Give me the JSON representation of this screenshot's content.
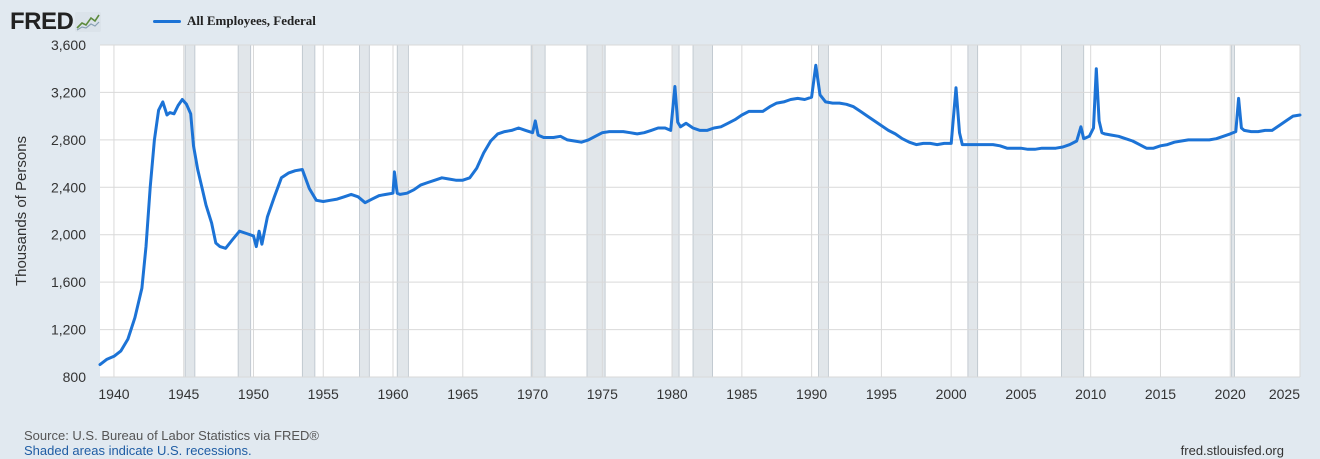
{
  "header": {
    "logo_text": "FRED",
    "logo_icon": "chart-trend-icon",
    "legend_label": "All Employees, Federal"
  },
  "colors": {
    "line": "#1c73d6",
    "plot_bg": "#ffffff",
    "page_bg": "#e1e9f0",
    "recession": "#e1e6ea",
    "grid": "#d9d9d9"
  },
  "footer": {
    "source": "U.S. Bureau of Labor Statistics via FRED®",
    "source_prefix": "Source: ",
    "recession_note": "Shaded areas indicate U.S. recessions.",
    "site": "fred.stlouisfed.org"
  },
  "chart_data": {
    "type": "line",
    "ylabel": "Thousands of Persons",
    "xlabel": "",
    "xlim": [
      1939.0,
      2025.0
    ],
    "ylim": [
      800,
      3600
    ],
    "y_ticks": [
      800,
      1200,
      1600,
      2000,
      2400,
      2800,
      3200,
      3600
    ],
    "y_tick_labels": [
      "800",
      "1,200",
      "1,600",
      "2,000",
      "2,400",
      "2,800",
      "3,200",
      "3,600"
    ],
    "x_ticks": [
      1940,
      1945,
      1950,
      1955,
      1960,
      1965,
      1970,
      1975,
      1980,
      1985,
      1990,
      1995,
      2000,
      2005,
      2010,
      2015,
      2020,
      2025
    ],
    "grid": true,
    "recessions": [
      [
        1945.1,
        1945.8
      ],
      [
        1948.9,
        1949.8
      ],
      [
        1953.5,
        1954.4
      ],
      [
        1957.6,
        1958.3
      ],
      [
        1960.3,
        1961.1
      ],
      [
        1969.9,
        1970.9
      ],
      [
        1973.9,
        1975.2
      ],
      [
        1980.0,
        1980.5
      ],
      [
        1981.5,
        1982.9
      ],
      [
        1990.5,
        1991.2
      ],
      [
        2001.2,
        2001.9
      ],
      [
        2007.9,
        2009.5
      ],
      [
        2020.1,
        2020.3
      ]
    ],
    "series": [
      {
        "name": "All Employees, Federal",
        "points": [
          [
            1939.0,
            905
          ],
          [
            1939.5,
            950
          ],
          [
            1940.0,
            975
          ],
          [
            1940.5,
            1020
          ],
          [
            1941.0,
            1120
          ],
          [
            1941.5,
            1300
          ],
          [
            1942.0,
            1550
          ],
          [
            1942.3,
            1900
          ],
          [
            1942.6,
            2400
          ],
          [
            1942.9,
            2800
          ],
          [
            1943.2,
            3050
          ],
          [
            1943.5,
            3120
          ],
          [
            1943.8,
            3010
          ],
          [
            1944.0,
            3030
          ],
          [
            1944.3,
            3020
          ],
          [
            1944.6,
            3090
          ],
          [
            1944.9,
            3140
          ],
          [
            1945.2,
            3100
          ],
          [
            1945.5,
            3020
          ],
          [
            1945.7,
            2750
          ],
          [
            1946.0,
            2550
          ],
          [
            1946.3,
            2400
          ],
          [
            1946.6,
            2250
          ],
          [
            1947.0,
            2100
          ],
          [
            1947.3,
            1930
          ],
          [
            1947.6,
            1900
          ],
          [
            1948.0,
            1885
          ],
          [
            1948.5,
            1960
          ],
          [
            1949.0,
            2030
          ],
          [
            1949.5,
            2010
          ],
          [
            1950.0,
            1990
          ],
          [
            1950.2,
            1900
          ],
          [
            1950.4,
            2030
          ],
          [
            1950.6,
            1920
          ],
          [
            1951.0,
            2150
          ],
          [
            1951.5,
            2320
          ],
          [
            1952.0,
            2480
          ],
          [
            1952.5,
            2520
          ],
          [
            1953.0,
            2540
          ],
          [
            1953.5,
            2550
          ],
          [
            1954.0,
            2390
          ],
          [
            1954.5,
            2290
          ],
          [
            1955.0,
            2280
          ],
          [
            1955.5,
            2290
          ],
          [
            1956.0,
            2300
          ],
          [
            1956.5,
            2320
          ],
          [
            1957.0,
            2340
          ],
          [
            1957.5,
            2320
          ],
          [
            1958.0,
            2270
          ],
          [
            1958.5,
            2300
          ],
          [
            1959.0,
            2330
          ],
          [
            1959.5,
            2340
          ],
          [
            1960.0,
            2350
          ],
          [
            1960.1,
            2530
          ],
          [
            1960.3,
            2350
          ],
          [
            1960.5,
            2340
          ],
          [
            1961.0,
            2350
          ],
          [
            1961.5,
            2380
          ],
          [
            1962.0,
            2420
          ],
          [
            1962.5,
            2440
          ],
          [
            1963.0,
            2460
          ],
          [
            1963.5,
            2480
          ],
          [
            1964.0,
            2470
          ],
          [
            1964.5,
            2460
          ],
          [
            1965.0,
            2460
          ],
          [
            1965.5,
            2480
          ],
          [
            1966.0,
            2560
          ],
          [
            1966.5,
            2690
          ],
          [
            1967.0,
            2790
          ],
          [
            1967.5,
            2850
          ],
          [
            1968.0,
            2870
          ],
          [
            1968.5,
            2880
          ],
          [
            1969.0,
            2900
          ],
          [
            1969.5,
            2880
          ],
          [
            1970.0,
            2860
          ],
          [
            1970.2,
            2960
          ],
          [
            1970.4,
            2840
          ],
          [
            1970.8,
            2820
          ],
          [
            1971.0,
            2820
          ],
          [
            1971.5,
            2820
          ],
          [
            1972.0,
            2830
          ],
          [
            1972.5,
            2800
          ],
          [
            1973.0,
            2790
          ],
          [
            1973.5,
            2780
          ],
          [
            1974.0,
            2800
          ],
          [
            1974.5,
            2830
          ],
          [
            1975.0,
            2860
          ],
          [
            1975.5,
            2870
          ],
          [
            1976.0,
            2870
          ],
          [
            1976.5,
            2870
          ],
          [
            1977.0,
            2860
          ],
          [
            1977.5,
            2850
          ],
          [
            1978.0,
            2860
          ],
          [
            1978.5,
            2880
          ],
          [
            1979.0,
            2900
          ],
          [
            1979.5,
            2900
          ],
          [
            1979.9,
            2880
          ],
          [
            1980.2,
            3250
          ],
          [
            1980.4,
            2950
          ],
          [
            1980.6,
            2910
          ],
          [
            1981.0,
            2940
          ],
          [
            1981.5,
            2900
          ],
          [
            1982.0,
            2880
          ],
          [
            1982.5,
            2880
          ],
          [
            1983.0,
            2900
          ],
          [
            1983.5,
            2910
          ],
          [
            1984.0,
            2940
          ],
          [
            1984.5,
            2970
          ],
          [
            1985.0,
            3010
          ],
          [
            1985.5,
            3040
          ],
          [
            1986.0,
            3040
          ],
          [
            1986.5,
            3040
          ],
          [
            1987.0,
            3080
          ],
          [
            1987.5,
            3110
          ],
          [
            1988.0,
            3120
          ],
          [
            1988.5,
            3140
          ],
          [
            1989.0,
            3150
          ],
          [
            1989.5,
            3140
          ],
          [
            1990.0,
            3160
          ],
          [
            1990.3,
            3430
          ],
          [
            1990.6,
            3180
          ],
          [
            1991.0,
            3120
          ],
          [
            1991.5,
            3110
          ],
          [
            1992.0,
            3110
          ],
          [
            1992.5,
            3100
          ],
          [
            1993.0,
            3080
          ],
          [
            1993.5,
            3040
          ],
          [
            1994.0,
            3000
          ],
          [
            1994.5,
            2960
          ],
          [
            1995.0,
            2920
          ],
          [
            1995.5,
            2880
          ],
          [
            1996.0,
            2850
          ],
          [
            1996.5,
            2810
          ],
          [
            1997.0,
            2780
          ],
          [
            1997.5,
            2760
          ],
          [
            1998.0,
            2770
          ],
          [
            1998.5,
            2770
          ],
          [
            1999.0,
            2760
          ],
          [
            1999.5,
            2770
          ],
          [
            2000.0,
            2770
          ],
          [
            2000.35,
            3240
          ],
          [
            2000.6,
            2860
          ],
          [
            2000.8,
            2760
          ],
          [
            2001.0,
            2760
          ],
          [
            2001.5,
            2760
          ],
          [
            2002.0,
            2760
          ],
          [
            2002.5,
            2760
          ],
          [
            2003.0,
            2760
          ],
          [
            2003.5,
            2750
          ],
          [
            2004.0,
            2730
          ],
          [
            2004.5,
            2730
          ],
          [
            2005.0,
            2730
          ],
          [
            2005.5,
            2720
          ],
          [
            2006.0,
            2720
          ],
          [
            2006.5,
            2730
          ],
          [
            2007.0,
            2730
          ],
          [
            2007.5,
            2730
          ],
          [
            2008.0,
            2740
          ],
          [
            2008.5,
            2760
          ],
          [
            2009.0,
            2790
          ],
          [
            2009.3,
            2910
          ],
          [
            2009.5,
            2810
          ],
          [
            2009.9,
            2830
          ],
          [
            2010.2,
            2900
          ],
          [
            2010.4,
            3400
          ],
          [
            2010.6,
            2960
          ],
          [
            2010.8,
            2860
          ],
          [
            2011.0,
            2850
          ],
          [
            2011.5,
            2840
          ],
          [
            2012.0,
            2830
          ],
          [
            2012.5,
            2810
          ],
          [
            2013.0,
            2790
          ],
          [
            2013.5,
            2760
          ],
          [
            2014.0,
            2730
          ],
          [
            2014.5,
            2730
          ],
          [
            2015.0,
            2750
          ],
          [
            2015.5,
            2760
          ],
          [
            2016.0,
            2780
          ],
          [
            2016.5,
            2790
          ],
          [
            2017.0,
            2800
          ],
          [
            2017.5,
            2800
          ],
          [
            2018.0,
            2800
          ],
          [
            2018.5,
            2800
          ],
          [
            2019.0,
            2810
          ],
          [
            2019.5,
            2830
          ],
          [
            2020.0,
            2850
          ],
          [
            2020.4,
            2870
          ],
          [
            2020.6,
            3150
          ],
          [
            2020.8,
            2900
          ],
          [
            2021.0,
            2880
          ],
          [
            2021.5,
            2870
          ],
          [
            2022.0,
            2870
          ],
          [
            2022.5,
            2880
          ],
          [
            2023.0,
            2880
          ],
          [
            2023.5,
            2920
          ],
          [
            2024.0,
            2960
          ],
          [
            2024.5,
            3000
          ],
          [
            2025.0,
            3010
          ]
        ]
      }
    ]
  }
}
